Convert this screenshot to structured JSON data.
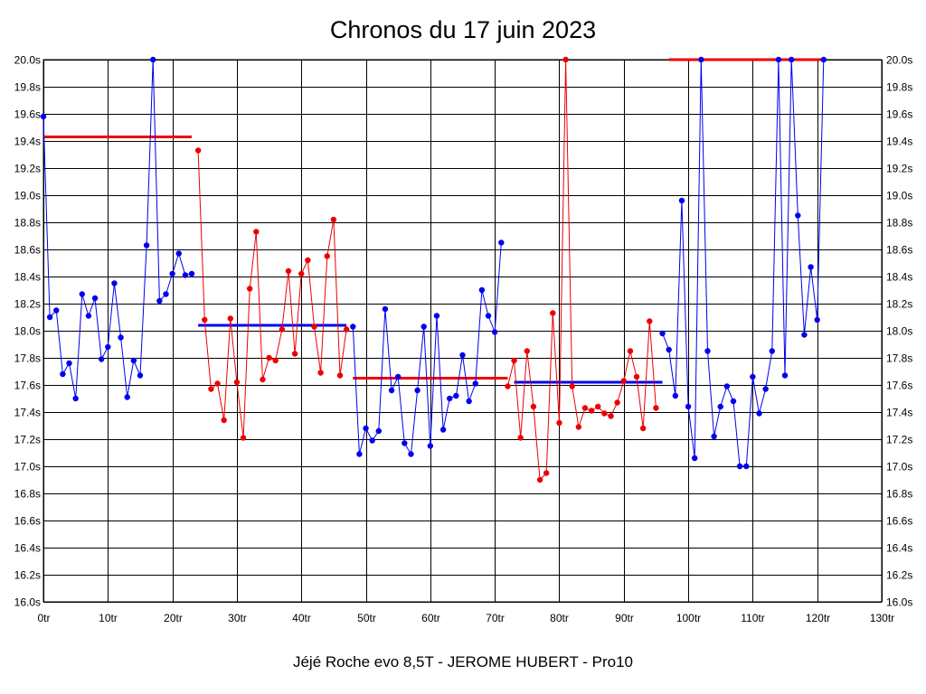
{
  "chart_data": {
    "type": "line",
    "title": "Chronos du 17 juin 2023",
    "caption": "Jéjé Roche evo 8,5T - JEROME HUBERT - Pro10",
    "xlim": [
      0,
      130
    ],
    "ylim": [
      16.0,
      20.0
    ],
    "x_ticks": [
      0,
      10,
      20,
      30,
      40,
      50,
      60,
      70,
      80,
      90,
      100,
      110,
      120,
      130
    ],
    "x_tick_labels": [
      "0tr",
      "10tr",
      "20tr",
      "30tr",
      "40tr",
      "50tr",
      "60tr",
      "70tr",
      "80tr",
      "90tr",
      "100tr",
      "110tr",
      "120tr",
      "130tr"
    ],
    "y_ticks": [
      16.0,
      16.2,
      16.4,
      16.6,
      16.8,
      17.0,
      17.2,
      17.4,
      17.6,
      17.8,
      18.0,
      18.2,
      18.4,
      18.6,
      18.8,
      19.0,
      19.2,
      19.4,
      19.6,
      19.8,
      20.0
    ],
    "y_tick_labels": [
      "16.0s",
      "16.2s",
      "16.4s",
      "16.6s",
      "16.8s",
      "17.0s",
      "17.2s",
      "17.4s",
      "17.6s",
      "17.8s",
      "18.0s",
      "18.2s",
      "18.4s",
      "18.6s",
      "18.8s",
      "19.0s",
      "19.2s",
      "19.4s",
      "19.6s",
      "19.8s",
      "20.0s"
    ],
    "grid": true,
    "y_axis_labels_both_sides": true,
    "colors": {
      "blue": "#0000ee",
      "red": "#ee0000",
      "grid": "#000000"
    },
    "series": [
      {
        "color": "blue",
        "x": [
          0,
          1,
          2,
          3,
          4,
          5,
          6,
          7,
          8,
          9,
          10,
          11,
          12,
          13,
          14,
          15,
          16,
          17,
          18,
          19,
          20,
          21,
          22,
          23
        ],
        "values": [
          19.58,
          18.1,
          18.15,
          17.68,
          17.76,
          17.5,
          18.27,
          18.11,
          18.24,
          17.79,
          17.88,
          18.35,
          17.95,
          17.51,
          17.78,
          17.67,
          18.63,
          20.0,
          18.22,
          18.27,
          18.42,
          18.57,
          18.41,
          18.42
        ],
        "average": 19.43
      },
      {
        "color": "red",
        "x": [
          24,
          25,
          26,
          27,
          28,
          29,
          30,
          31,
          32,
          33,
          34,
          35,
          36,
          37,
          38,
          39,
          40,
          41,
          42,
          43,
          44,
          45,
          46,
          47
        ],
        "values": [
          19.33,
          18.08,
          17.57,
          17.61,
          17.34,
          18.09,
          17.62,
          17.21,
          18.31,
          18.73,
          17.64,
          17.8,
          17.78,
          18.01,
          18.44,
          17.83,
          18.42,
          18.52,
          18.03,
          17.69,
          18.55,
          18.82,
          17.67,
          18.01
        ],
        "average": 18.04
      },
      {
        "color": "blue",
        "x": [
          48,
          49,
          50,
          51,
          52,
          53,
          54,
          55,
          56,
          57,
          58,
          59,
          60,
          61,
          62,
          63,
          64,
          65,
          66,
          67,
          68,
          69,
          70,
          71
        ],
        "values": [
          18.03,
          17.09,
          17.28,
          17.19,
          17.26,
          18.16,
          17.56,
          17.66,
          17.17,
          17.09,
          17.56,
          18.03,
          17.15,
          18.11,
          17.27,
          17.5,
          17.52,
          17.82,
          17.48,
          17.61,
          18.3,
          18.11,
          17.99,
          18.65
        ],
        "average": 17.65
      },
      {
        "color": "red",
        "x": [
          72,
          73,
          74,
          75,
          76,
          77,
          78,
          79,
          80,
          81,
          82,
          83,
          84,
          85,
          86,
          87,
          88,
          89,
          90,
          91,
          92,
          93,
          94,
          95
        ],
        "values": [
          17.59,
          17.78,
          17.21,
          17.85,
          17.44,
          16.9,
          16.95,
          18.13,
          17.32,
          20.0,
          17.59,
          17.29,
          17.43,
          17.41,
          17.44,
          17.39,
          17.37,
          17.47,
          17.63,
          17.85,
          17.66,
          17.28,
          18.07,
          17.43
        ],
        "average": 17.62
      },
      {
        "color": "blue",
        "x": [
          96,
          97,
          98,
          99,
          100,
          101,
          102,
          103,
          104,
          105,
          106,
          107,
          108,
          109,
          110,
          111,
          112,
          113,
          114,
          115,
          116,
          117,
          118,
          119,
          120,
          121
        ],
        "values": [
          17.98,
          17.86,
          17.52,
          18.96,
          17.44,
          17.06,
          20.0,
          17.85,
          17.22,
          17.44,
          17.59,
          17.48,
          17.0,
          17.0,
          17.66,
          17.39,
          17.57,
          17.85,
          20.0,
          17.67,
          20.0,
          18.85,
          17.97,
          18.47,
          18.08,
          20.0
        ],
        "average": 20.0
      }
    ],
    "average_lines": [
      {
        "color": "red",
        "x": [
          0,
          23
        ],
        "value": 19.43
      },
      {
        "color": "blue",
        "x": [
          24,
          47
        ],
        "value": 18.04
      },
      {
        "color": "red",
        "x": [
          48,
          72
        ],
        "value": 17.65
      },
      {
        "color": "blue",
        "x": [
          73,
          96
        ],
        "value": 17.62
      },
      {
        "color": "red",
        "x": [
          97,
          121
        ],
        "value": 20.0
      }
    ]
  }
}
